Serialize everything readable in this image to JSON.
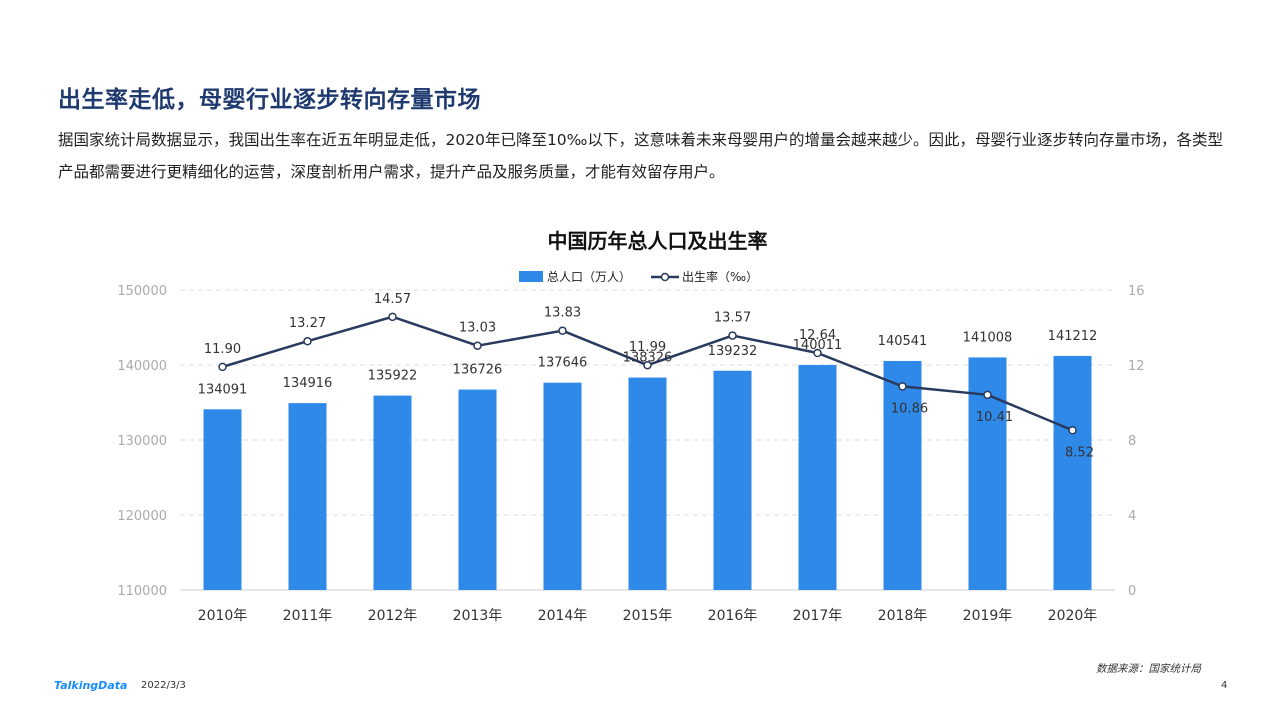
{
  "page": {
    "title": "出生率走低，母婴行业逐步转向存量市场",
    "intro": "据国家统计局数据显示，我国出生率在近五年明显走低，2020年已降至10‰以下，这意味着未来母婴用户的增量会越来越少。因此，母婴行业逐步转向存量市场，各类型产品都需要进行更精细化的运营，深度剖析用户需求，提升产品及服务质量，才能有效留存用户。",
    "source": "数据来源：国家统计局",
    "footer": {
      "logo": "TalkingData",
      "date": "2022/3/3",
      "page_number": "4"
    }
  },
  "colors": {
    "bar": "#2f89e8",
    "line": "#2a3a5e",
    "title": "#1f3a6e"
  },
  "chart_data": {
    "type": "bar",
    "title": "中国历年总人口及出生率",
    "categories": [
      "2010年",
      "2011年",
      "2012年",
      "2013年",
      "2014年",
      "2015年",
      "2016年",
      "2017年",
      "2018年",
      "2019年",
      "2020年"
    ],
    "series": [
      {
        "name": "总人口（万人）",
        "type": "bar",
        "axis": "left",
        "values": [
          134091,
          134916,
          135922,
          136726,
          137646,
          138326,
          139232,
          140011,
          140541,
          141008,
          141212
        ]
      },
      {
        "name": "出生率（‰）",
        "type": "line",
        "axis": "right",
        "values": [
          11.9,
          13.27,
          14.57,
          13.03,
          13.83,
          11.99,
          13.57,
          12.64,
          10.86,
          10.41,
          8.52
        ]
      }
    ],
    "ylim_left": [
      110000,
      150000
    ],
    "yticks_left": [
      "110000",
      "120000",
      "130000",
      "140000",
      "150000"
    ],
    "ylim_right": [
      0,
      16
    ],
    "yticks_right": [
      "0",
      "4",
      "8",
      "12",
      "16"
    ],
    "legend_position": "top-center",
    "grid": true
  }
}
